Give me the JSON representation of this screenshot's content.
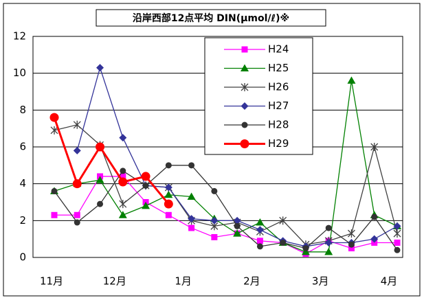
{
  "chart_data": {
    "type": "line",
    "title": "沿岸西部12点平均 DIN(μmol/ℓ)※",
    "categories": [
      "11月",
      null,
      null,
      "12月",
      null,
      null,
      "1月",
      null,
      null,
      "2月",
      null,
      null,
      "3月",
      null,
      null,
      "4月"
    ],
    "ylim": [
      0,
      12
    ],
    "yticks": [
      0,
      2,
      4,
      6,
      8,
      10,
      12
    ],
    "grid": true,
    "legend": "top",
    "series": [
      {
        "name": "H24",
        "color": "#ff00ff",
        "marker": "square",
        "values": [
          2.3,
          2.3,
          4.4,
          4.4,
          3.0,
          2.3,
          1.6,
          1.1,
          1.3,
          0.9,
          0.8,
          0.2,
          0.9,
          0.5,
          0.8,
          0.8
        ]
      },
      {
        "name": "H25",
        "color": "#008000",
        "marker": "triangle",
        "values": [
          3.6,
          4.0,
          4.2,
          2.3,
          2.8,
          3.4,
          3.3,
          2.1,
          1.3,
          1.9,
          0.8,
          0.3,
          0.3,
          9.6,
          2.3,
          1.7
        ]
      },
      {
        "name": "H26",
        "color": "#404040",
        "marker": "star",
        "values": [
          6.9,
          7.2,
          6.1,
          2.9,
          3.9,
          3.8,
          2.0,
          1.7,
          1.9,
          1.4,
          2.0,
          0.7,
          0.9,
          1.3,
          6.0,
          1.3
        ]
      },
      {
        "name": "H27",
        "color": "#333399",
        "marker": "diamond",
        "values": [
          null,
          5.8,
          10.3,
          6.5,
          3.9,
          3.8,
          2.1,
          2.0,
          2.0,
          1.5,
          0.9,
          0.6,
          0.8,
          0.8,
          1.0,
          1.7
        ]
      },
      {
        "name": "H28",
        "color": "#333333",
        "marker": "circle",
        "values": [
          3.6,
          1.9,
          2.9,
          4.7,
          3.9,
          5.0,
          5.0,
          3.6,
          1.7,
          0.6,
          0.8,
          0.5,
          1.6,
          0.7,
          2.2,
          0.4
        ]
      },
      {
        "name": "H29",
        "color": "#ff0000",
        "marker": "bigcircle",
        "values": [
          7.6,
          4.0,
          6.0,
          4.1,
          4.4,
          2.9,
          null,
          null,
          null,
          null,
          null,
          null,
          null,
          null,
          null,
          null
        ]
      }
    ]
  }
}
